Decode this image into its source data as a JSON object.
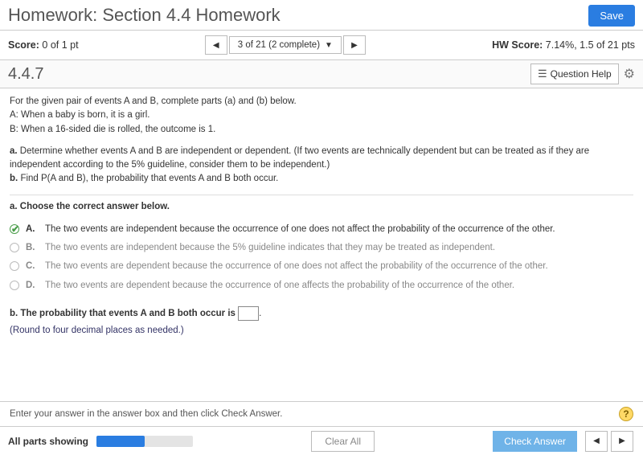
{
  "header": {
    "title": "Homework: Section 4.4 Homework",
    "save_label": "Save"
  },
  "scorebar": {
    "score_label": "Score:",
    "score_value": "0 of 1 pt",
    "nav_label": "3 of 21 (2 complete)",
    "hw_score_label": "HW Score:",
    "hw_score_value": "7.14%, 1.5 of 21 pts"
  },
  "question": {
    "number": "4.4.7",
    "help_label": "Question Help"
  },
  "problem": {
    "intro": "For the given pair of events A and B, complete parts (a) and (b) below.",
    "event_a": "A: When a baby is born, it is a girl.",
    "event_b": "B: When a 16-sided die is rolled, the outcome is 1.",
    "part_a_prompt": "a. Determine whether events A and B are independent or dependent. (If two events are technically dependent but can be treated as if they are independent according to the 5% guideline, consider them to be independent.)",
    "part_b_prompt": "b. Find P(A and B), the probability that events A and B both occur.",
    "part_a_title": "a. Choose the correct answer below.",
    "choices": [
      {
        "letter": "A.",
        "text": "The two events are independent because the occurrence of one does not affect the probability of the occurrence of the other.",
        "selected": true
      },
      {
        "letter": "B.",
        "text": "The two events are independent because the 5% guideline indicates that they may be treated as independent.",
        "selected": false
      },
      {
        "letter": "C.",
        "text": "The two events are dependent because the occurrence of one does not affect the probability of the occurrence of the other.",
        "selected": false
      },
      {
        "letter": "D.",
        "text": "The two events are dependent because the occurrence of one affects the probability of the occurrence of the other.",
        "selected": false
      }
    ],
    "part_b_text_before": "b. The probability that events A and B both occur is ",
    "part_b_text_after": ".",
    "round_note": "(Round to four decimal places as needed.)"
  },
  "footer": {
    "instruction": "Enter your answer in the answer box and then click Check Answer.",
    "parts_status": "All parts showing",
    "progress_percent": 50,
    "clear_label": "Clear All",
    "check_label": "Check Answer"
  },
  "colors": {
    "primary": "#2a7de1",
    "check_btn": "#6fb3e8",
    "selected_green": "#4a9d4a"
  }
}
